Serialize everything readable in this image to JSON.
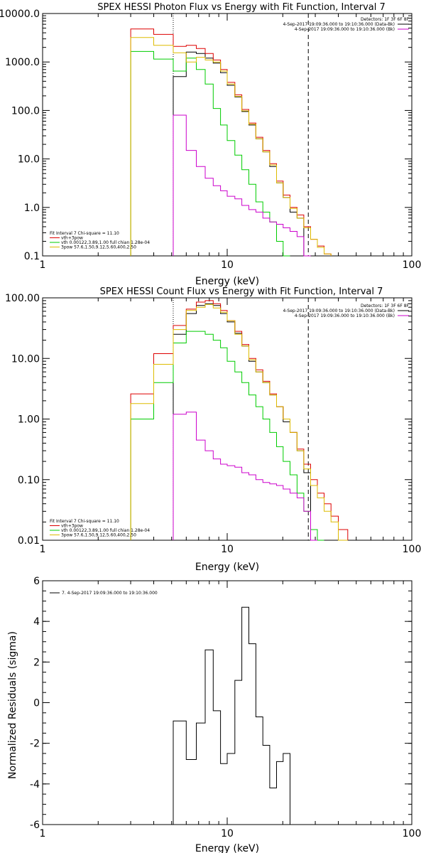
{
  "chart_data": [
    {
      "type": "line",
      "title": "SPEX HESSI Photon Flux vs Energy with Fit Function, Interval 7",
      "xlabel": "Energy (keV)",
      "ylabel": "",
      "xscale": "log",
      "yscale": "log",
      "xlim": [
        1,
        100
      ],
      "ylim": [
        0.1,
        10000
      ],
      "xticks": [
        "1",
        "10",
        "100"
      ],
      "yticks": [
        "0.1",
        "1.0",
        "10.0",
        "100.0",
        "1000.0",
        "10000.0"
      ],
      "vlines": [
        {
          "x": 5.1,
          "style": "dotted",
          "color": "#000000"
        },
        {
          "x": 27.5,
          "style": "dashed",
          "color": "#000000"
        }
      ],
      "top_right_legend": [
        {
          "text": "Detectors: 1F 3F 6F 8F",
          "color": "#000000"
        },
        {
          "text": "4-Sep-2017 19:09:36.000 to 19:10:36.000 (Data-Bk)",
          "color": "#000000"
        },
        {
          "text": "4-Sep-2017 19:09:36.000 to 19:10:36.000 (Bk)",
          "color": "#cc00cc"
        }
      ],
      "bottom_left_legend": [
        {
          "text": "Fit Interval 7   Chi-square = 11.10",
          "color": "#000000"
        },
        {
          "text": "vth+3pow",
          "color": "#dd0000"
        },
        {
          "text": "vth 0.00122,3.89,1.00  full chian 1.28e-04",
          "color": "#00cc00"
        },
        {
          "text": "3pow 57.6,1.50,9.12,5.60,400,2.50",
          "color": "#ddbb00"
        }
      ],
      "bin_edges": [
        3.0,
        4.0,
        5.1,
        6.0,
        6.8,
        7.6,
        8.4,
        9.2,
        10.0,
        11.0,
        12.0,
        13.1,
        14.3,
        15.6,
        17.0,
        18.5,
        20.1,
        21.9,
        23.9,
        26.0,
        28.3,
        30.8,
        33.5,
        36.5,
        40.0
      ],
      "series": [
        {
          "name": "Data-Bk",
          "color": "#000000",
          "values": [
            null,
            null,
            500,
            1600,
            1500,
            1200,
            950,
            600,
            330,
            190,
            95,
            50,
            26,
            14,
            7,
            3.2,
            1.6,
            0.8,
            0.6,
            0.1,
            null,
            null,
            null,
            null
          ]
        },
        {
          "name": "vth+3pow",
          "color": "#dd0000",
          "values": [
            4800,
            3700,
            2100,
            2200,
            1900,
            1500,
            1100,
            700,
            380,
            210,
            105,
            55,
            28,
            15,
            8,
            3.5,
            1.8,
            1.0,
            0.7,
            0.4,
            0.22,
            0.16,
            0.11,
            null
          ]
        },
        {
          "name": "vth",
          "color": "#00cc00",
          "values": [
            1650,
            1150,
            650,
            1200,
            700,
            350,
            110,
            50,
            24,
            12,
            6,
            3,
            1.3,
            0.8,
            0.5,
            0.2,
            0.1,
            null,
            null,
            null,
            null,
            null,
            null,
            null
          ]
        },
        {
          "name": "3pow",
          "color": "#ddbb00",
          "values": [
            3200,
            2200,
            1550,
            1000,
            1250,
            1100,
            1000,
            650,
            350,
            195,
            98,
            52,
            26,
            14,
            7.5,
            3.2,
            1.6,
            0.95,
            0.6,
            0.38,
            0.22,
            0.15,
            0.11,
            null
          ]
        },
        {
          "name": "Bk",
          "color": "#cc00cc",
          "values": [
            null,
            null,
            80,
            15,
            7,
            4,
            2.8,
            2.2,
            1.7,
            1.5,
            1.1,
            0.9,
            0.8,
            0.6,
            0.5,
            0.45,
            0.38,
            0.32,
            0.25,
            0.1,
            null,
            null,
            null,
            null
          ]
        }
      ]
    },
    {
      "type": "line",
      "title": "SPEX HESSI Count Flux vs Energy with Fit Function, Interval 7",
      "xlabel": "Energy (keV)",
      "ylabel": "",
      "xscale": "log",
      "yscale": "log",
      "xlim": [
        1,
        100
      ],
      "ylim": [
        0.01,
        100
      ],
      "xticks": [
        "1",
        "10",
        "100"
      ],
      "yticks": [
        "0.01",
        "0.10",
        "1.00",
        "10.00",
        "100.00"
      ],
      "vlines": [
        {
          "x": 5.1,
          "style": "dotted",
          "color": "#000000"
        },
        {
          "x": 27.5,
          "style": "dashed",
          "color": "#000000"
        }
      ],
      "top_right_legend": [
        {
          "text": "Detectors: 1F 3F 6F 8F",
          "color": "#000000"
        },
        {
          "text": "4-Sep-2017 19:09:36.000 to 19:10:36.000 (Data-Bk)",
          "color": "#000000"
        },
        {
          "text": "4-Sep-2017 19:09:36.000 to 19:10:36.000 (Bk)",
          "color": "#cc00cc"
        }
      ],
      "bottom_left_legend": [
        {
          "text": "Fit Interval 7   Chi-square = 11.10",
          "color": "#000000"
        },
        {
          "text": "vth+3pow",
          "color": "#dd0000"
        },
        {
          "text": "vth 0.00122,3.89,1.00  full chian 1.28e-04",
          "color": "#00cc00"
        },
        {
          "text": "3pow 57.6,1.50,9.12,5.60,400,2.50",
          "color": "#ddbb00"
        }
      ],
      "bin_edges": [
        3.0,
        4.0,
        5.1,
        6.0,
        6.8,
        7.6,
        8.4,
        9.2,
        10.0,
        11.0,
        12.0,
        13.1,
        14.3,
        15.6,
        17.0,
        18.5,
        20.1,
        21.9,
        23.9,
        26.0,
        28.3,
        30.8,
        33.5,
        36.5,
        40.0,
        45.0
      ],
      "series": [
        {
          "name": "Data-Bk",
          "color": "#000000",
          "values": [
            null,
            null,
            25,
            55,
            75,
            80,
            75,
            55,
            40,
            26,
            16,
            9,
            6,
            4,
            2.5,
            1.6,
            0.9,
            0.6,
            0.3,
            0.13,
            0.01,
            null,
            null,
            null,
            null
          ]
        },
        {
          "name": "vth+3pow",
          "color": "#dd0000",
          "values": [
            2.6,
            12,
            35,
            65,
            85,
            90,
            80,
            62,
            42,
            28,
            17,
            10,
            6.5,
            4.2,
            2.6,
            1.6,
            1.0,
            0.6,
            0.32,
            0.18,
            0.1,
            0.06,
            0.04,
            0.025,
            0.015
          ]
        },
        {
          "name": "vth",
          "color": "#00cc00",
          "values": [
            1.0,
            4.0,
            18,
            28,
            28,
            25,
            20,
            15,
            9,
            6,
            4,
            2.5,
            1.6,
            1.0,
            0.6,
            0.35,
            0.2,
            0.12,
            0.06,
            0.03,
            0.015,
            0.01,
            null,
            null,
            null
          ]
        },
        {
          "name": "3pow",
          "color": "#ddbb00",
          "values": [
            1.8,
            8,
            30,
            62,
            70,
            78,
            68,
            58,
            42,
            25,
            16,
            9.5,
            6,
            4,
            2.5,
            1.6,
            1.0,
            0.6,
            0.3,
            0.15,
            0.08,
            0.05,
            0.03,
            0.02,
            0.01
          ]
        },
        {
          "name": "Bk",
          "color": "#cc00cc",
          "values": [
            null,
            null,
            1.2,
            1.3,
            0.45,
            0.3,
            0.22,
            0.18,
            0.17,
            0.16,
            0.13,
            0.12,
            0.1,
            0.09,
            0.085,
            0.08,
            0.07,
            0.06,
            0.05,
            0.03,
            0.01,
            null,
            null,
            null,
            null
          ]
        }
      ]
    },
    {
      "type": "line",
      "title": "",
      "xlabel": "Energy (keV)",
      "ylabel": "Normalized Residuals (sigma)",
      "xscale": "log",
      "yscale": "linear",
      "xlim": [
        1,
        100
      ],
      "ylim": [
        -6,
        6
      ],
      "xticks": [
        "1",
        "10",
        "100"
      ],
      "yticks": [
        "-6",
        "-4",
        "-2",
        "0",
        "2",
        "4",
        "6"
      ],
      "legend": [
        {
          "text": "7.  4-Sep-2017 19:09:36.000 to 19:10:36.000",
          "color": "#000000"
        }
      ],
      "bin_edges": [
        5.1,
        6.0,
        6.8,
        7.6,
        8.4,
        9.2,
        10.0,
        11.0,
        12.0,
        13.1,
        14.3,
        15.6,
        17.0,
        18.5,
        20.1,
        21.9,
        23.9,
        26.0,
        28.3
      ],
      "series": [
        {
          "name": "7.  4-Sep-2017 19:09:36.000 to 19:10:36.000",
          "color": "#000000",
          "values": [
            -0.9,
            -2.8,
            -1.0,
            2.6,
            -0.4,
            -3.0,
            -2.5,
            1.1,
            4.7,
            2.9,
            -0.7,
            -2.1,
            -4.2,
            -2.9,
            -2.5,
            -6
          ]
        }
      ]
    }
  ]
}
